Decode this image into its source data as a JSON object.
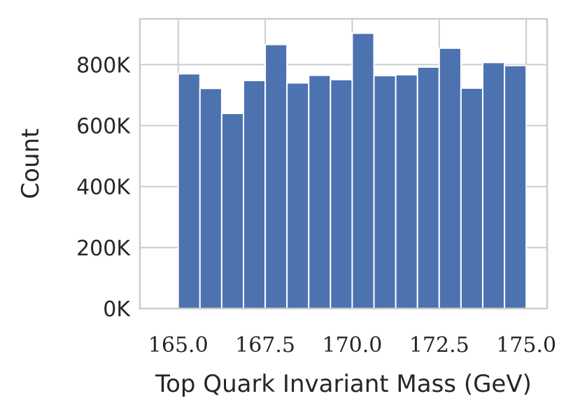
{
  "chart_data": {
    "type": "bar",
    "xlabel": "Top Quark Invariant Mass (GeV)",
    "ylabel": "Count",
    "xlim": [
      163.9,
      175.6
    ],
    "ylim": [
      0,
      950000
    ],
    "grid": true,
    "bar_color": "#4c72b0",
    "grid_color": "#cccccc",
    "bins": {
      "start": 165.0,
      "width": 0.625,
      "values": [
        770000,
        722000,
        640000,
        748000,
        866000,
        740000,
        765000,
        751000,
        903000,
        764000,
        767000,
        792000,
        854000,
        723000,
        807000,
        797000
      ]
    },
    "x_ticks": [
      {
        "value": 165.0,
        "label": "165.0"
      },
      {
        "value": 167.5,
        "label": "167.5"
      },
      {
        "value": 170.0,
        "label": "170.0"
      },
      {
        "value": 172.5,
        "label": "172.5"
      },
      {
        "value": 175.0,
        "label": "175.0"
      }
    ],
    "y_ticks": [
      {
        "value": 0,
        "label": "0K"
      },
      {
        "value": 200000,
        "label": "200K"
      },
      {
        "value": 400000,
        "label": "400K"
      },
      {
        "value": 600000,
        "label": "600K"
      },
      {
        "value": 800000,
        "label": "800K"
      }
    ]
  }
}
